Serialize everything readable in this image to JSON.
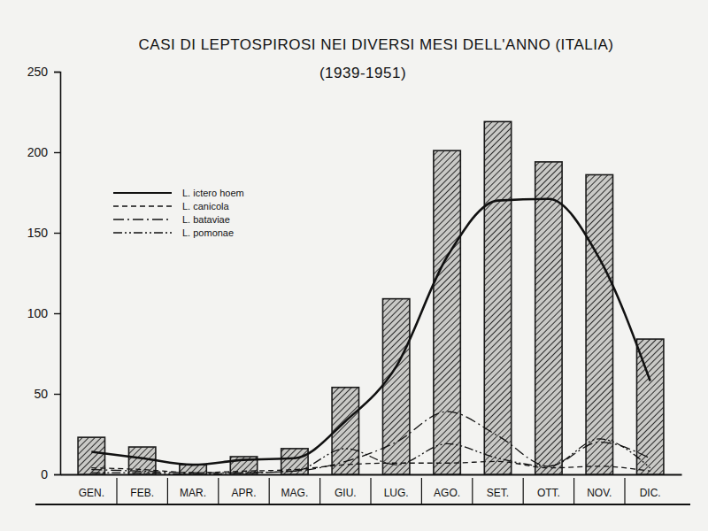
{
  "chart_data": {
    "type": "bar",
    "title": "CASI DI LEPTOSPIROSI NEI DIVERSI MESI DELL'ANNO (ITALIA)",
    "subtitle": "(1939-1951)",
    "categories": [
      "GEN.",
      "FEB.",
      "MAR.",
      "APR.",
      "MAG.",
      "GIU.",
      "LUG.",
      "AGO.",
      "SET.",
      "OTT.",
      "NOV.",
      "DIC."
    ],
    "series": [
      {
        "type": "bar",
        "color": "#1a1a1a",
        "values": [
          23,
          17,
          6,
          11,
          16,
          54,
          109,
          201,
          219,
          194,
          186,
          84
        ]
      },
      {
        "name": "L. ictero hoem",
        "type": "line",
        "line_style": "solid",
        "color": "#111111",
        "values": [
          14,
          10,
          6,
          9,
          10,
          33,
          67,
          135,
          170,
          171,
          134,
          58
        ]
      },
      {
        "name": "L. canicola",
        "type": "line",
        "line_style": "dashed",
        "color": "#111111",
        "values": [
          4,
          3,
          1,
          2,
          3,
          6,
          7,
          7,
          8,
          4,
          5,
          2
        ]
      },
      {
        "name": "L. bataviae",
        "type": "line",
        "line_style": "dashdot",
        "color": "#111111",
        "values": [
          3,
          2,
          1,
          1,
          2,
          8,
          20,
          39,
          24,
          5,
          20,
          10
        ]
      },
      {
        "name": "L. pomonae",
        "type": "line",
        "line_style": "dashdotdot",
        "color": "#111111",
        "values": [
          1,
          1,
          0,
          1,
          2,
          16,
          6,
          19,
          10,
          5,
          22,
          4
        ]
      }
    ],
    "ylim": [
      0,
      250
    ],
    "yticks": [
      0,
      50,
      100,
      150,
      200,
      250
    ],
    "legend": "upper left",
    "grid": false
  }
}
